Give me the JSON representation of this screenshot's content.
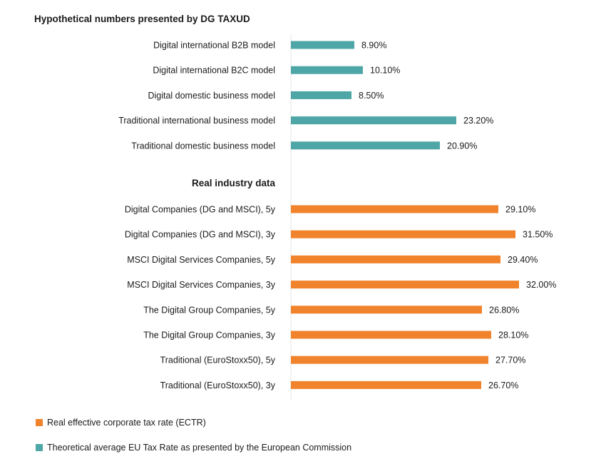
{
  "chart_data": {
    "type": "bar",
    "orientation": "horizontal",
    "grid": false,
    "xlim": [
      0,
      35
    ],
    "groups": [
      {
        "title": "Hypothetical numbers presented by DG TAXUD",
        "color": "#4EA6A6",
        "legend_index": 1,
        "categories": [
          "Digital international B2B model",
          "Digital international B2C model",
          "Digital domestic business model",
          "Traditional international business model",
          "Traditional domestic business model"
        ],
        "values": [
          8.9,
          10.1,
          8.5,
          23.2,
          20.9
        ],
        "value_labels": [
          "8.90%",
          "10.10%",
          "8.50%",
          "23.20%",
          "20.90%"
        ]
      },
      {
        "title": "Real industry data",
        "color": "#F0832C",
        "legend_index": 0,
        "categories": [
          "Digital Companies (DG and MSCI), 5y",
          "Digital Companies (DG and MSCI), 3y",
          "MSCI Digital Services Companies, 5y",
          "MSCI Digital Services Companies, 3y",
          "The Digital Group Companies, 5y",
          "The Digital Group Companies, 3y",
          "Traditional (EuroStoxx50), 5y",
          "Traditional (EuroStoxx50), 3y"
        ],
        "values": [
          29.1,
          31.5,
          29.4,
          32.0,
          26.8,
          28.1,
          27.7,
          26.7
        ],
        "value_labels": [
          "29.10%",
          "31.50%",
          "29.40%",
          "32.00%",
          "26.80%",
          "28.10%",
          "27.70%",
          "26.70%"
        ]
      }
    ],
    "legend": {
      "position": "bottom-left",
      "entries": [
        {
          "label": "Real effective corporate tax rate (ECTR)",
          "color": "#F0832C"
        },
        {
          "label": "Theoretical average EU Tax Rate as presented by the European Commission",
          "color": "#4EA6A6"
        }
      ]
    }
  }
}
